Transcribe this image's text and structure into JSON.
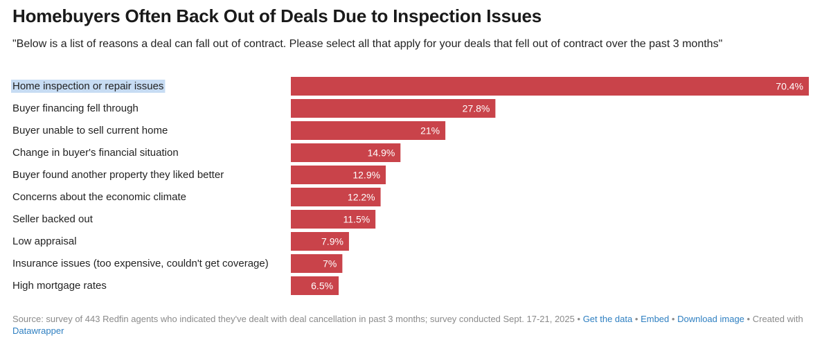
{
  "header": {
    "title": "Homebuyers Often Back Out of Deals Due to Inspection Issues",
    "subtitle": "\"Below is a list of reasons a deal can fall out of contract. Please select all that apply for your deals that fell out of contract over the past 3 months\""
  },
  "chart_data": {
    "type": "bar",
    "orientation": "horizontal",
    "categories": [
      "Home inspection or repair issues",
      "Buyer financing fell through",
      "Buyer unable to sell current home",
      "Change in buyer's financial situation",
      "Buyer found another property they liked better",
      "Concerns about the economic climate",
      "Seller backed out",
      "Low appraisal",
      "Insurance issues (too expensive, couldn't get coverage)",
      "High mortgage rates"
    ],
    "values": [
      70.4,
      27.8,
      21,
      14.9,
      12.9,
      12.2,
      11.5,
      7.9,
      7,
      6.5
    ],
    "value_labels": [
      "70.4%",
      "27.8%",
      "21%",
      "14.9%",
      "12.9%",
      "12.2%",
      "11.5%",
      "7.9%",
      "7%",
      "6.5%"
    ],
    "xlim": [
      0,
      70.4
    ],
    "highlighted_category": "Home inspection or repair issues",
    "grid": false,
    "legend": "none",
    "colors": {
      "bar": "#c9434a",
      "value_label": "#ffffff",
      "highlight": "#c7dcf3"
    }
  },
  "footer": {
    "source": "Source: survey of 443 Redfin agents who indicated they've dealt with deal cancellation in past 3 months; survey conducted Sept. 17-21, 2025",
    "sep": "•",
    "get_data": "Get the data",
    "embed": "Embed",
    "download": "Download image",
    "created_prefix": "Created with",
    "created_link": "Datawrapper"
  }
}
